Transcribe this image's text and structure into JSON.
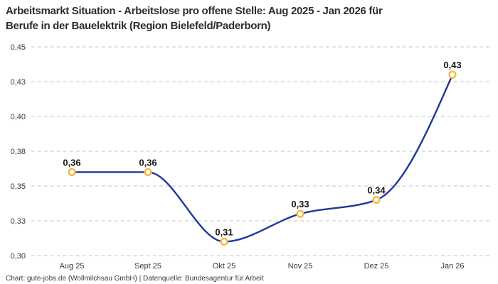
{
  "title": {
    "line1": "Arbeitsmarkt Situation - Arbeitslose pro offene Stelle: Aug 2025 - Jan 2026 für",
    "line2": "Berufe in der Bauelektrik (Region Bielefeld/Paderborn)"
  },
  "footer": {
    "text": "Chart: gute-jobs.de (Wollmilchsau GmbH) | Datenquelle: Bundesagentur für Arbeit"
  },
  "chart_data": {
    "type": "line",
    "title": "Arbeitsmarkt Situation - Arbeitslose pro offene Stelle: Aug 2025 - Jan 2026 für Berufe in der Bauelektrik (Region Bielefeld/Paderborn)",
    "categories": [
      "Aug 25",
      "Sept 25",
      "Okt 25",
      "Nov 25",
      "Dez 25",
      "Jan 26"
    ],
    "series": [
      {
        "name": "Arbeitslose pro offene Stelle",
        "values": [
          0.36,
          0.36,
          0.31,
          0.33,
          0.34,
          0.43
        ],
        "point_labels": [
          "0,36",
          "0,36",
          "0,31",
          "0,33",
          "0,34",
          "0,43"
        ]
      }
    ],
    "xlabel": "",
    "ylabel": "",
    "ylim": [
      0.3,
      0.45
    ],
    "yticks": {
      "values": [
        0.3,
        0.325,
        0.35,
        0.375,
        0.4,
        0.425,
        0.45
      ],
      "labels": [
        "0,30",
        "0,33",
        "0,35",
        "0,38",
        "0,40",
        "0,43",
        "0,45"
      ]
    },
    "grid": "horizontal-dashed",
    "legend": "none",
    "curve": "monotone",
    "colors": {
      "line": "#1e3799",
      "marker_ring": "#f6b93b",
      "marker_fill": "#ffffff",
      "grid": "#c6c6c6",
      "title_text": "#2d2d2d",
      "tick_text": "#3a3a3a",
      "point_label_text": "#151515",
      "footer_text": "#3c3c3c",
      "background": "#ffffff"
    }
  }
}
